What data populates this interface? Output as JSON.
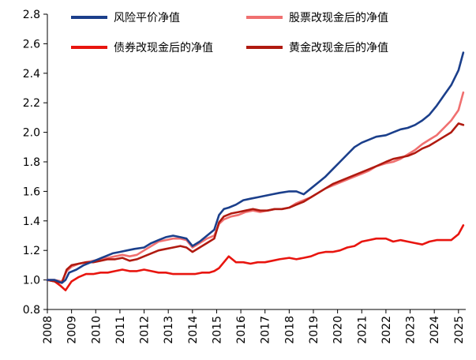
{
  "chart_data": {
    "type": "line",
    "title": "",
    "xlabel": "",
    "ylabel": "",
    "ylim": [
      0.8,
      2.8
    ],
    "yticks": [
      "0.8",
      "1.0",
      "1.2",
      "1.4",
      "1.6",
      "1.8",
      "2.0",
      "2.2",
      "2.4",
      "2.6",
      "2.8"
    ],
    "xticks": [
      "2008",
      "2009",
      "2010",
      "2011",
      "2012",
      "2013",
      "2014",
      "2015",
      "2016",
      "2017",
      "2018",
      "2019",
      "2020",
      "2021",
      "2022",
      "2023",
      "2024",
      "2025"
    ],
    "xlim": [
      2008.0,
      2025.3
    ],
    "grid": false,
    "legend_position": "top",
    "series": [
      {
        "name": "风险平价净值",
        "color": "#1b3f8b",
        "x": [
          2008.0,
          2008.3,
          2008.6,
          2008.75,
          2008.9,
          2009.2,
          2009.5,
          2009.8,
          2010.1,
          2010.4,
          2010.7,
          2011.0,
          2011.3,
          2011.6,
          2012.0,
          2012.3,
          2012.6,
          2012.9,
          2013.2,
          2013.5,
          2013.75,
          2014.0,
          2014.3,
          2014.6,
          2014.9,
          2015.1,
          2015.3,
          2015.5,
          2015.8,
          2016.1,
          2016.4,
          2016.7,
          2017.0,
          2017.3,
          2017.6,
          2018.0,
          2018.3,
          2018.6,
          2018.9,
          2019.2,
          2019.5,
          2019.8,
          2020.1,
          2020.4,
          2020.7,
          2021.0,
          2021.3,
          2021.6,
          2022.0,
          2022.3,
          2022.6,
          2022.9,
          2023.2,
          2023.5,
          2023.8,
          2024.1,
          2024.4,
          2024.7,
          2025.0,
          2025.2
        ],
        "values": [
          1.0,
          1.0,
          0.98,
          1.0,
          1.05,
          1.07,
          1.1,
          1.12,
          1.14,
          1.16,
          1.18,
          1.19,
          1.2,
          1.21,
          1.22,
          1.25,
          1.27,
          1.29,
          1.3,
          1.29,
          1.28,
          1.23,
          1.26,
          1.3,
          1.34,
          1.44,
          1.48,
          1.49,
          1.51,
          1.54,
          1.55,
          1.56,
          1.57,
          1.58,
          1.59,
          1.6,
          1.6,
          1.58,
          1.62,
          1.66,
          1.7,
          1.75,
          1.8,
          1.85,
          1.9,
          1.93,
          1.95,
          1.97,
          1.98,
          2.0,
          2.02,
          2.03,
          2.05,
          2.08,
          2.12,
          2.18,
          2.25,
          2.32,
          2.42,
          2.54
        ]
      },
      {
        "name": "股票改现金后的净值",
        "color": "#f07070",
        "x": [
          2008.0,
          2008.3,
          2008.6,
          2008.8,
          2009.0,
          2009.3,
          2009.6,
          2009.9,
          2010.2,
          2010.5,
          2010.8,
          2011.1,
          2011.4,
          2011.7,
          2012.0,
          2012.3,
          2012.6,
          2012.9,
          2013.2,
          2013.5,
          2013.75,
          2014.0,
          2014.3,
          2014.6,
          2014.9,
          2015.1,
          2015.3,
          2015.6,
          2015.9,
          2016.2,
          2016.5,
          2016.8,
          2017.1,
          2017.4,
          2017.7,
          2018.0,
          2018.3,
          2018.6,
          2018.9,
          2019.2,
          2019.5,
          2019.8,
          2020.1,
          2020.4,
          2020.7,
          2021.0,
          2021.3,
          2021.6,
          2022.0,
          2022.3,
          2022.6,
          2022.9,
          2023.2,
          2023.5,
          2023.8,
          2024.1,
          2024.4,
          2024.7,
          2025.0,
          2025.2
        ],
        "values": [
          1.0,
          1.0,
          0.99,
          1.06,
          1.09,
          1.11,
          1.12,
          1.13,
          1.14,
          1.15,
          1.16,
          1.17,
          1.16,
          1.17,
          1.2,
          1.23,
          1.26,
          1.27,
          1.28,
          1.28,
          1.27,
          1.22,
          1.25,
          1.28,
          1.3,
          1.38,
          1.41,
          1.43,
          1.44,
          1.46,
          1.47,
          1.46,
          1.47,
          1.48,
          1.48,
          1.49,
          1.52,
          1.54,
          1.56,
          1.59,
          1.62,
          1.64,
          1.66,
          1.68,
          1.7,
          1.72,
          1.74,
          1.77,
          1.79,
          1.8,
          1.82,
          1.85,
          1.88,
          1.92,
          1.95,
          1.98,
          2.03,
          2.08,
          2.15,
          2.27
        ]
      },
      {
        "name": "债券改现金后的净值",
        "color": "#e8150f",
        "x": [
          2008.0,
          2008.3,
          2008.55,
          2008.75,
          2009.0,
          2009.3,
          2009.6,
          2009.9,
          2010.2,
          2010.5,
          2010.8,
          2011.1,
          2011.4,
          2011.7,
          2012.0,
          2012.3,
          2012.6,
          2012.9,
          2013.2,
          2013.5,
          2013.8,
          2014.1,
          2014.4,
          2014.7,
          2014.9,
          2015.1,
          2015.3,
          2015.5,
          2015.8,
          2016.1,
          2016.4,
          2016.7,
          2017.0,
          2017.3,
          2017.6,
          2018.0,
          2018.3,
          2018.6,
          2018.9,
          2019.2,
          2019.5,
          2019.8,
          2020.1,
          2020.4,
          2020.7,
          2021.0,
          2021.3,
          2021.6,
          2022.0,
          2022.3,
          2022.6,
          2022.9,
          2023.2,
          2023.5,
          2023.8,
          2024.1,
          2024.4,
          2024.7,
          2025.0,
          2025.2
        ],
        "values": [
          1.0,
          0.99,
          0.96,
          0.93,
          0.99,
          1.02,
          1.04,
          1.04,
          1.05,
          1.05,
          1.06,
          1.07,
          1.06,
          1.06,
          1.07,
          1.06,
          1.05,
          1.05,
          1.04,
          1.04,
          1.04,
          1.04,
          1.05,
          1.05,
          1.06,
          1.08,
          1.12,
          1.16,
          1.12,
          1.12,
          1.11,
          1.12,
          1.12,
          1.13,
          1.14,
          1.15,
          1.14,
          1.15,
          1.16,
          1.18,
          1.19,
          1.19,
          1.2,
          1.22,
          1.23,
          1.26,
          1.27,
          1.28,
          1.28,
          1.26,
          1.27,
          1.26,
          1.25,
          1.24,
          1.26,
          1.27,
          1.27,
          1.27,
          1.31,
          1.37
        ]
      },
      {
        "name": "黄金改现金后的净值",
        "color": "#b01a10",
        "x": [
          2008.0,
          2008.3,
          2008.6,
          2008.8,
          2009.0,
          2009.3,
          2009.6,
          2009.9,
          2010.2,
          2010.5,
          2010.8,
          2011.1,
          2011.4,
          2011.7,
          2012.0,
          2012.3,
          2012.6,
          2012.9,
          2013.2,
          2013.5,
          2013.75,
          2014.0,
          2014.3,
          2014.6,
          2014.9,
          2015.1,
          2015.3,
          2015.6,
          2015.9,
          2016.2,
          2016.5,
          2016.8,
          2017.1,
          2017.4,
          2017.7,
          2018.0,
          2018.3,
          2018.6,
          2018.9,
          2019.2,
          2019.5,
          2019.8,
          2020.1,
          2020.4,
          2020.7,
          2021.0,
          2021.3,
          2021.6,
          2022.0,
          2022.3,
          2022.6,
          2022.9,
          2023.2,
          2023.5,
          2023.8,
          2024.1,
          2024.4,
          2024.7,
          2025.0,
          2025.2
        ],
        "values": [
          1.0,
          0.99,
          0.98,
          1.07,
          1.1,
          1.11,
          1.12,
          1.12,
          1.13,
          1.14,
          1.14,
          1.15,
          1.13,
          1.14,
          1.16,
          1.18,
          1.2,
          1.21,
          1.22,
          1.23,
          1.22,
          1.19,
          1.22,
          1.25,
          1.28,
          1.39,
          1.43,
          1.45,
          1.46,
          1.47,
          1.48,
          1.47,
          1.47,
          1.48,
          1.48,
          1.49,
          1.51,
          1.53,
          1.56,
          1.59,
          1.62,
          1.65,
          1.67,
          1.69,
          1.71,
          1.73,
          1.75,
          1.77,
          1.8,
          1.82,
          1.83,
          1.84,
          1.86,
          1.89,
          1.91,
          1.94,
          1.97,
          2.0,
          2.06,
          2.05
        ]
      }
    ]
  }
}
